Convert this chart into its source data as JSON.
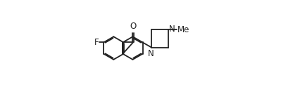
{
  "background_color": "#ffffff",
  "line_color": "#222222",
  "line_width": 1.3,
  "font_size": 8.5,
  "label_F": "F",
  "label_O": "O",
  "label_N1": "N",
  "label_N2": "N",
  "label_Me": "Me",
  "xlim": [
    -5,
    112
  ],
  "ylim": [
    28,
    85
  ]
}
